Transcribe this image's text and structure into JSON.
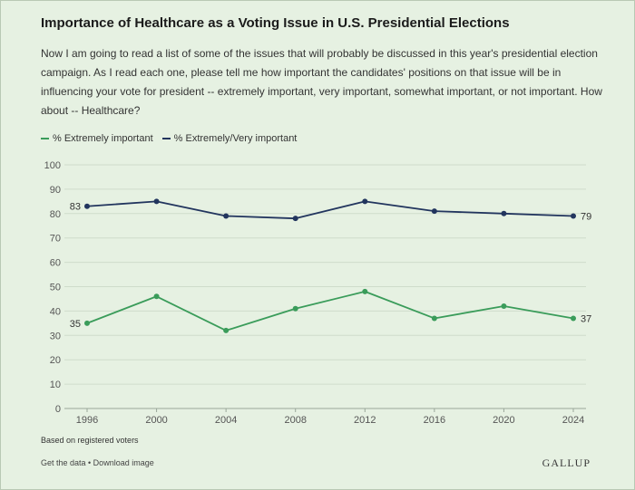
{
  "header": {
    "title": "Importance of Healthcare as a Voting Issue in U.S. Presidential Elections",
    "subtitle": "Now I am going to read a list of some of the issues that will probably be discussed in this year's presidential election campaign. As I read each one, please tell me how important the candidates' positions on that issue will be in influencing your vote for president -- extremely important, very important, somewhat important, or not important. How about -- Healthcare?"
  },
  "legend": {
    "items": [
      {
        "label": "% Extremely important",
        "color": "#3a9c5a"
      },
      {
        "label": "% Extremely/Very important",
        "color": "#22355e"
      }
    ]
  },
  "chart_data": {
    "type": "line",
    "title": "Importance of Healthcare as a Voting Issue in U.S. Presidential Elections",
    "categories": [
      "1996",
      "2000",
      "2004",
      "2008",
      "2012",
      "2016",
      "2020",
      "2024"
    ],
    "series": [
      {
        "name": "% Extremely important",
        "color": "#3a9c5a",
        "values": [
          35,
          46,
          32,
          41,
          48,
          37,
          42,
          37
        ]
      },
      {
        "name": "% Extremely/Very important",
        "color": "#22355e",
        "values": [
          83,
          85,
          79,
          78,
          85,
          81,
          80,
          79
        ]
      }
    ],
    "yticks": [
      0,
      10,
      20,
      30,
      40,
      50,
      60,
      70,
      80,
      90,
      100
    ],
    "ylim": [
      0,
      100
    ],
    "grid": true,
    "legend_position": "top-left",
    "labeled_points": [
      {
        "series": 1,
        "index": 0,
        "text": "83",
        "side": "left"
      },
      {
        "series": 1,
        "index": 7,
        "text": "79",
        "side": "right"
      },
      {
        "series": 0,
        "index": 0,
        "text": "35",
        "side": "left"
      },
      {
        "series": 0,
        "index": 7,
        "text": "37",
        "side": "right"
      }
    ]
  },
  "footer": {
    "note": "Based on registered voters",
    "links": "Get the data • Download image",
    "brand": "GALLUP"
  }
}
